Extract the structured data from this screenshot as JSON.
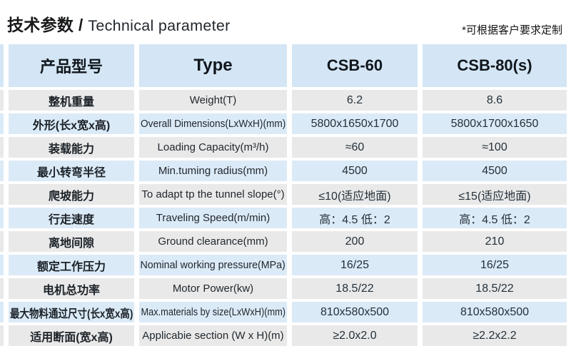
{
  "page": {
    "title_zh": "技术参数",
    "title_sep": " / ",
    "title_en": "Technical parameter",
    "note": "*可根据客户要求定制"
  },
  "table": {
    "header": [
      "产品型号",
      "Type",
      "CSB-60",
      "CSB-80(s)"
    ],
    "rows": [
      {
        "zh": "整机重量",
        "en": "Weight(T)",
        "csb60": "6.2",
        "csb80": "8.6"
      },
      {
        "zh": "外形(长x宽x高)",
        "en": "Overall Dimensions(LxWxH)(mm)",
        "csb60": "5800x1650x1700",
        "csb80": "5800x1700x1650"
      },
      {
        "zh": "装载能力",
        "en": "Loading Capacity(m³/h)",
        "csb60": "≈60",
        "csb80": "≈100"
      },
      {
        "zh": "最小转弯半径",
        "en": "Min.tuming radius(mm)",
        "csb60": "4500",
        "csb80": "4500"
      },
      {
        "zh": "爬坡能力",
        "en": "To adapt tp the tunnel slope(°)",
        "csb60": "≤10(适应地面)",
        "csb80": "≤15(适应地面)"
      },
      {
        "zh": "行走速度",
        "en": "Traveling Speed(m/min)",
        "csb60": "高：4.5 低：2",
        "csb80": "高：4.5 低：2"
      },
      {
        "zh": "离地间隙",
        "en": "Ground clearance(mm)",
        "csb60": "200",
        "csb80": "210"
      },
      {
        "zh": "额定工作压力",
        "en": "Nominal working pressure(MPa)",
        "csb60": "16/25",
        "csb80": "16/25"
      },
      {
        "zh": "电机总功率",
        "en": "Motor Power(kw)",
        "csb60": "18.5/22",
        "csb80": "18.5/22"
      },
      {
        "zh": "最大物料通过尺寸(长x宽x高)",
        "en": "Max.materials by size(LxWxH)(mm)",
        "csb60": "810x580x500",
        "csb80": "810x580x500"
      },
      {
        "zh": "适用断面(宽x高)",
        "en": "Applicabie section (W x H)(m)",
        "csb60": "≥2.0x2.0",
        "csb80": "≥2.2x2.2"
      }
    ]
  },
  "colors": {
    "header_bg": "#d4e6f5",
    "row_blue": "#dbeaf7",
    "row_gray": "#e9e9e9",
    "text": "#1f262e"
  }
}
